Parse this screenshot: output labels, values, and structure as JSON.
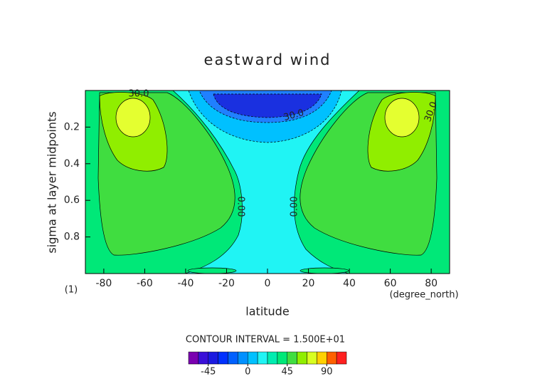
{
  "chart_data": {
    "type": "contour",
    "title": "eastward wind",
    "x_label": "latitude",
    "y_label": "sigma at layer midpoints",
    "x_units": "(degree_north)",
    "y_units": "(1)",
    "xlim": [
      -89,
      89
    ],
    "xticks": [
      -80,
      -60,
      -40,
      -20,
      0,
      20,
      40,
      60,
      80
    ],
    "ylim": [
      0,
      1
    ],
    "y_inverted": true,
    "yticks": [
      0.2,
      0.4,
      0.6,
      0.8
    ],
    "contour_labels": [
      "30.0",
      "30.0",
      "30.0",
      "0.00",
      "0.00"
    ],
    "contour_interval_text": "CONTOUR INTERVAL = 1.500E+01",
    "colorbar": {
      "lim": [
        -67.5,
        112.5
      ],
      "ticks": [
        -45,
        0,
        45,
        90
      ],
      "colors": [
        "#7a00b0",
        "#3a10d8",
        "#1a1ae0",
        "#0030ff",
        "#0060ff",
        "#0090ff",
        "#00c0ff",
        "#20f4f4",
        "#00ecb0",
        "#00e878",
        "#40dd40",
        "#90ee00",
        "#d8ff20",
        "#ffd000",
        "#ff6000",
        "#ff2020"
      ]
    }
  }
}
